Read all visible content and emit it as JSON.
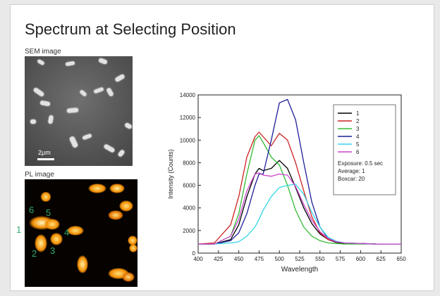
{
  "slide": {
    "title": "Spectrum at Selecting Position",
    "sem_caption": "SEM image",
    "pl_caption": "PL image",
    "scale_bar_label": "2μm",
    "pl_labels": [
      "1",
      "2",
      "3",
      "4",
      "5",
      "6"
    ]
  },
  "chart_data": {
    "type": "line",
    "xlabel": "Wavelength",
    "ylabel": "Intensity (Counts)",
    "xlim": [
      400,
      650
    ],
    "ylim": [
      0,
      14000
    ],
    "xticks": [
      400,
      425,
      450,
      475,
      500,
      525,
      550,
      575,
      600,
      625,
      650
    ],
    "yticks": [
      0,
      2000,
      4000,
      6000,
      8000,
      10000,
      12000,
      14000
    ],
    "grid": false,
    "legend_position": "top-right",
    "legend_notes": [
      "Exposure: 0.5 sec",
      "Average: 1",
      "Boxcar: 20"
    ],
    "x": [
      400,
      420,
      440,
      450,
      460,
      470,
      475,
      480,
      490,
      500,
      510,
      520,
      530,
      540,
      550,
      560,
      570,
      580,
      600,
      620,
      650
    ],
    "series": [
      {
        "name": "1",
        "color": "#000000",
        "values": [
          800,
          800,
          1200,
          2500,
          5000,
          7000,
          7500,
          7300,
          7500,
          8200,
          7500,
          5800,
          4000,
          2600,
          1700,
          1200,
          950,
          850,
          850,
          800,
          800
        ]
      },
      {
        "name": "2",
        "color": "#cc2222",
        "values": [
          800,
          900,
          2500,
          5000,
          8500,
          10300,
          10700,
          10300,
          9500,
          10600,
          10000,
          8000,
          5500,
          3200,
          1800,
          1200,
          1000,
          900,
          850,
          800,
          800
        ]
      },
      {
        "name": "3",
        "color": "#33bb33",
        "values": [
          800,
          800,
          1500,
          3500,
          7000,
          10000,
          10400,
          9800,
          8500,
          7800,
          6000,
          3800,
          2300,
          1500,
          1100,
          900,
          850,
          800,
          800,
          800,
          800
        ]
      },
      {
        "name": "4",
        "color": "#1f1f99",
        "values": [
          800,
          800,
          1100,
          1800,
          3500,
          6000,
          7000,
          7000,
          10000,
          13300,
          13600,
          11800,
          8000,
          4500,
          2300,
          1300,
          1000,
          900,
          850,
          800,
          800
        ]
      },
      {
        "name": "5",
        "color": "#33d6e6",
        "values": [
          800,
          800,
          900,
          1000,
          1500,
          2300,
          3000,
          3800,
          5000,
          5800,
          6000,
          6100,
          5200,
          3600,
          2300,
          1400,
          1050,
          900,
          850,
          800,
          800
        ]
      },
      {
        "name": "6",
        "color": "#cc44cc",
        "values": [
          800,
          800,
          1500,
          3000,
          5500,
          7000,
          7100,
          6900,
          6800,
          7000,
          6900,
          5900,
          4300,
          2900,
          1900,
          1300,
          1000,
          900,
          850,
          800,
          800
        ]
      }
    ]
  }
}
